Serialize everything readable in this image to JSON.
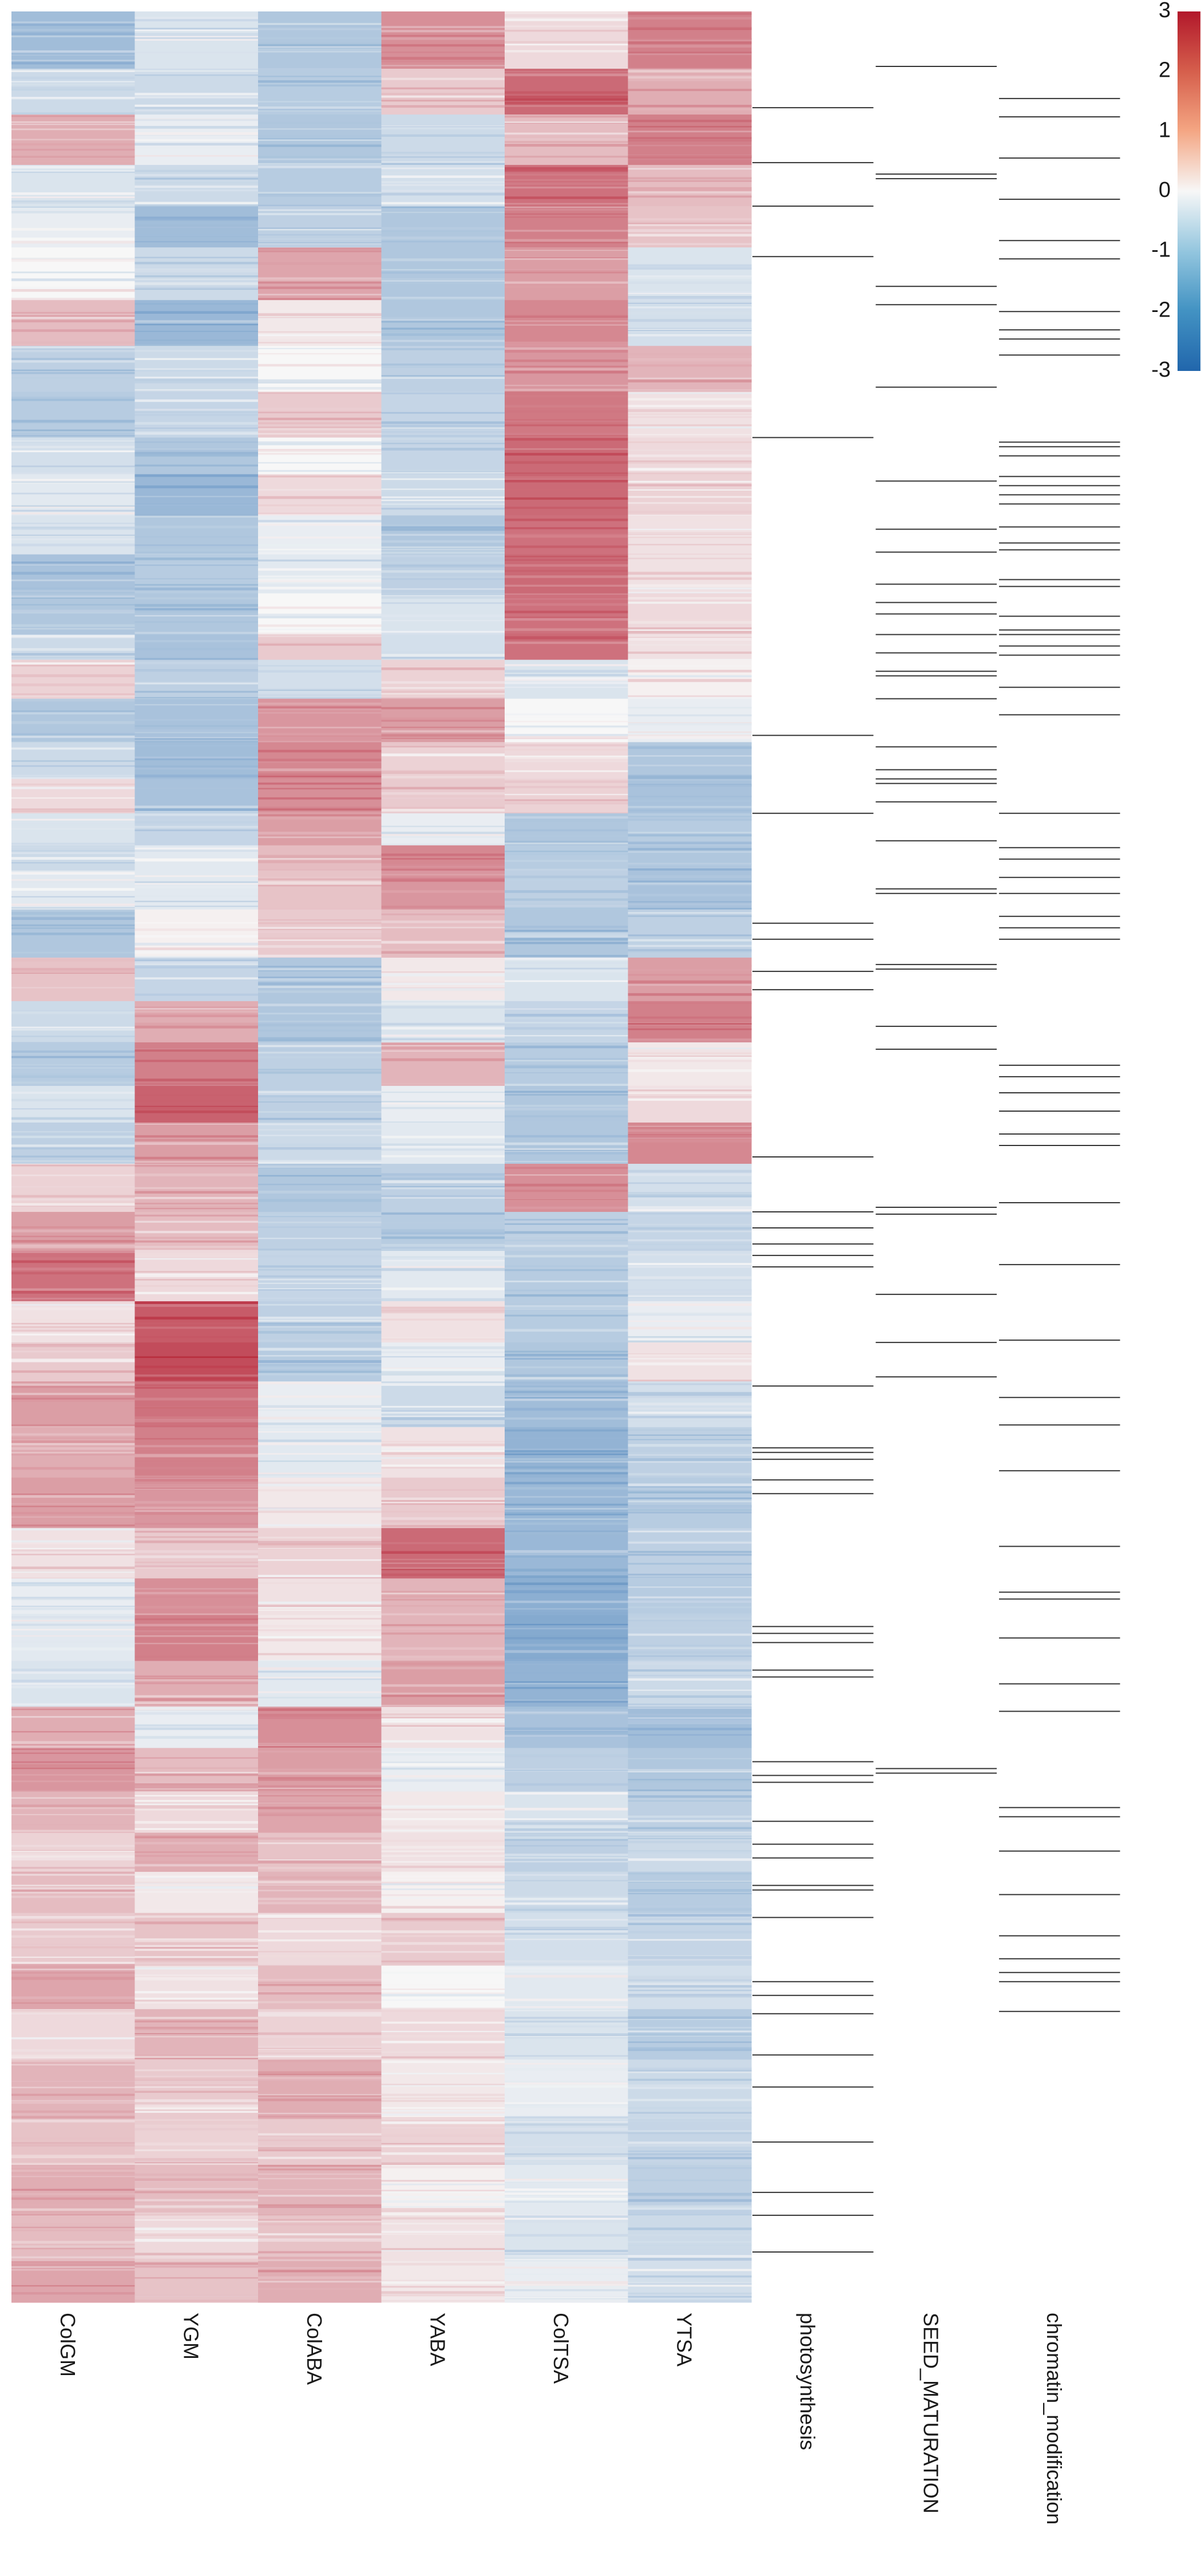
{
  "chart_data": {
    "type": "heatmap",
    "title": "",
    "xlabel": "",
    "ylabel": "",
    "columns": [
      "ColGM",
      "YGM",
      "ColABA",
      "YABA",
      "ColTSA",
      "YTSA"
    ],
    "annotation_columns": [
      "photosynthesis",
      "SEED_MATURATION",
      "chromatin_modification"
    ],
    "color_scale": {
      "range": [
        -3,
        3
      ],
      "ticks": [
        "3",
        "2",
        "1",
        "0",
        "-1",
        "-2",
        "-3"
      ],
      "low_color": "#2166ac",
      "mid_color": "#f7f7f7",
      "high_color": "#b2182b"
    },
    "row_fraction_start": [
      0,
      0.025,
      0.045,
      0.067,
      0.085,
      0.103,
      0.126,
      0.146,
      0.166,
      0.186,
      0.202,
      0.22,
      0.237,
      0.254,
      0.272,
      0.283,
      0.3,
      0.319,
      0.335,
      0.35,
      0.364,
      0.375,
      0.392,
      0.413,
      0.432,
      0.45,
      0.469,
      0.485,
      0.503,
      0.524,
      0.541,
      0.563,
      0.581,
      0.598,
      0.618,
      0.64,
      0.662,
      0.684,
      0.7,
      0.72,
      0.74,
      0.758,
      0.777,
      0.795,
      0.812,
      0.83,
      0.853,
      0.872,
      0.894,
      0.92,
      0.94,
      0.962,
      0.982
    ],
    "blocks": [
      [
        -1.2,
        -0.4,
        -1.0,
        1.4,
        0.4,
        1.6
      ],
      [
        -0.6,
        -0.6,
        -0.9,
        0.6,
        1.9,
        1.0
      ],
      [
        1.0,
        -0.2,
        -1.0,
        -0.6,
        0.8,
        1.6
      ],
      [
        -0.4,
        -0.6,
        -0.9,
        -0.5,
        1.8,
        0.8
      ],
      [
        -0.2,
        -1.2,
        -0.8,
        -1.0,
        1.6,
        0.7
      ],
      [
        0.0,
        -0.6,
        1.1,
        -1.0,
        1.2,
        -0.4
      ],
      [
        0.8,
        -1.3,
        0.2,
        -1.0,
        1.5,
        -0.5
      ],
      [
        -0.8,
        -0.6,
        0.0,
        -0.8,
        1.3,
        0.9
      ],
      [
        -0.9,
        -0.7,
        0.6,
        -0.7,
        1.7,
        0.3
      ],
      [
        -0.5,
        -1.0,
        0.0,
        -0.7,
        1.9,
        0.4
      ],
      [
        -0.3,
        -1.3,
        0.4,
        -0.6,
        1.9,
        0.5
      ],
      [
        -0.4,
        -1.0,
        -0.2,
        -1.0,
        1.8,
        0.3
      ],
      [
        -1.1,
        -0.9,
        -0.3,
        -0.8,
        1.9,
        0.3
      ],
      [
        -1.0,
        -1.0,
        0.0,
        -0.4,
        1.8,
        0.4
      ],
      [
        -0.6,
        -1.1,
        0.6,
        -0.5,
        1.8,
        0.3
      ],
      [
        0.5,
        -0.8,
        -0.5,
        0.5,
        -0.4,
        0.1
      ],
      [
        -1.0,
        -1.1,
        1.3,
        1.2,
        0.0,
        -0.2
      ],
      [
        -0.6,
        -1.2,
        1.5,
        0.5,
        0.4,
        -1.0
      ],
      [
        0.4,
        -1.1,
        1.4,
        0.6,
        0.5,
        -1.1
      ],
      [
        -0.4,
        -0.7,
        1.2,
        -0.2,
        -1.0,
        -0.9
      ],
      [
        -0.6,
        -0.3,
        0.8,
        1.5,
        -0.9,
        -1.0
      ],
      [
        -0.3,
        -0.3,
        0.7,
        1.3,
        -0.8,
        -1.1
      ],
      [
        -1.0,
        0.1,
        0.6,
        0.8,
        -1.0,
        -0.8
      ],
      [
        0.7,
        -0.7,
        -1.0,
        0.2,
        -0.4,
        1.2
      ],
      [
        -0.6,
        1.0,
        -1.0,
        -0.4,
        -0.7,
        1.6
      ],
      [
        -0.9,
        1.6,
        -0.8,
        0.9,
        -0.9,
        0.2
      ],
      [
        -0.4,
        2.0,
        -0.8,
        -0.2,
        -1.0,
        0.4
      ],
      [
        -0.8,
        1.2,
        -0.6,
        -0.3,
        -1.0,
        1.5
      ],
      [
        0.5,
        0.9,
        -1.0,
        -0.8,
        1.4,
        -0.5
      ],
      [
        1.2,
        0.8,
        -0.8,
        -0.9,
        -0.8,
        -0.7
      ],
      [
        1.8,
        0.4,
        -0.7,
        -0.3,
        -0.9,
        -0.5
      ],
      [
        0.3,
        2.1,
        -0.8,
        0.3,
        -0.9,
        -0.2
      ],
      [
        0.6,
        2.3,
        -0.9,
        -0.2,
        -1.0,
        0.3
      ],
      [
        1.2,
        1.8,
        -0.2,
        -0.6,
        -1.2,
        -0.5
      ],
      [
        1.0,
        1.6,
        -0.3,
        0.3,
        -1.4,
        -0.8
      ],
      [
        1.2,
        1.3,
        0.2,
        0.6,
        -1.3,
        -0.9
      ],
      [
        0.3,
        0.6,
        0.5,
        1.9,
        -1.3,
        -0.8
      ],
      [
        -0.2,
        1.4,
        0.3,
        0.9,
        -1.5,
        -0.9
      ],
      [
        -0.3,
        1.6,
        0.2,
        0.9,
        -1.6,
        -0.8
      ],
      [
        -0.4,
        1.0,
        -0.3,
        1.2,
        -1.4,
        -0.6
      ],
      [
        1.0,
        -0.2,
        1.4,
        0.3,
        -1.1,
        -1.2
      ],
      [
        1.3,
        0.8,
        1.2,
        -0.2,
        -0.8,
        -1.0
      ],
      [
        0.9,
        0.4,
        1.1,
        0.2,
        -0.4,
        -0.8
      ],
      [
        0.5,
        1.0,
        0.7,
        0.3,
        -0.8,
        -0.6
      ],
      [
        0.8,
        0.2,
        0.9,
        0.1,
        -0.6,
        -0.9
      ],
      [
        0.6,
        0.7,
        0.4,
        0.6,
        -0.5,
        -0.7
      ],
      [
        1.1,
        0.3,
        0.8,
        0.0,
        -0.3,
        -0.5
      ],
      [
        0.4,
        0.9,
        0.5,
        0.4,
        -0.4,
        -0.9
      ],
      [
        0.9,
        0.6,
        1.0,
        0.2,
        -0.2,
        -0.6
      ],
      [
        0.7,
        0.5,
        0.6,
        0.5,
        -0.5,
        -0.7
      ],
      [
        1.0,
        0.8,
        0.9,
        0.1,
        -0.3,
        -0.8
      ],
      [
        0.8,
        0.4,
        0.7,
        0.3,
        -0.4,
        -0.6
      ],
      [
        1.1,
        0.7,
        1.0,
        0.2,
        -0.2,
        -0.5
      ]
    ],
    "annotation_marks": {
      "photosynthesis": [
        0.042,
        0.066,
        0.085,
        0.107,
        0.186,
        0.316,
        0.35,
        0.398,
        0.405,
        0.419,
        0.427,
        0.5,
        0.524,
        0.531,
        0.538,
        0.543,
        0.548,
        0.6,
        0.627,
        0.629,
        0.632,
        0.641,
        0.647,
        0.705,
        0.708,
        0.712,
        0.724,
        0.727,
        0.764,
        0.77,
        0.773,
        0.79,
        0.8,
        0.806,
        0.818,
        0.82,
        0.832,
        0.86,
        0.866,
        0.874,
        0.892,
        0.906,
        0.93,
        0.952,
        0.962,
        0.978
      ],
      "SEED_MATURATION": [
        0.024,
        0.071,
        0.073,
        0.12,
        0.128,
        0.164,
        0.205,
        0.226,
        0.236,
        0.25,
        0.258,
        0.263,
        0.272,
        0.28,
        0.288,
        0.29,
        0.3,
        0.321,
        0.331,
        0.335,
        0.337,
        0.345,
        0.362,
        0.383,
        0.385,
        0.416,
        0.418,
        0.443,
        0.453,
        0.522,
        0.525,
        0.56,
        0.581,
        0.596,
        0.767,
        0.769
      ],
      "chromatin_modification": [
        0.038,
        0.046,
        0.064,
        0.082,
        0.1,
        0.108,
        0.131,
        0.139,
        0.143,
        0.15,
        0.188,
        0.19,
        0.194,
        0.203,
        0.207,
        0.211,
        0.215,
        0.225,
        0.232,
        0.235,
        0.248,
        0.251,
        0.264,
        0.27,
        0.272,
        0.277,
        0.281,
        0.295,
        0.307,
        0.35,
        0.365,
        0.37,
        0.378,
        0.385,
        0.395,
        0.4,
        0.405,
        0.46,
        0.465,
        0.472,
        0.48,
        0.49,
        0.495,
        0.52,
        0.547,
        0.58,
        0.605,
        0.617,
        0.637,
        0.67,
        0.69,
        0.693,
        0.71,
        0.73,
        0.742,
        0.784,
        0.788,
        0.803,
        0.822,
        0.84,
        0.85,
        0.856,
        0.86,
        0.873
      ]
    }
  }
}
